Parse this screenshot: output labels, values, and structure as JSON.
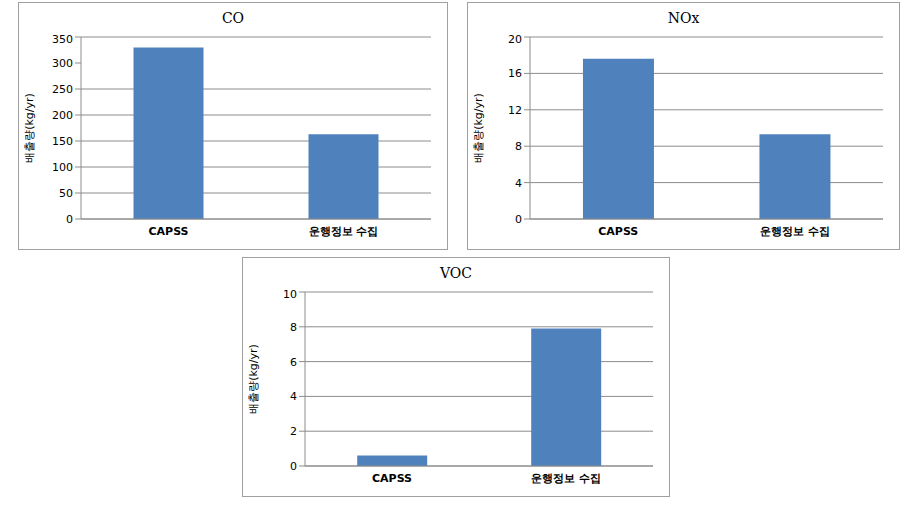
{
  "chart_data": [
    {
      "type": "bar",
      "title": "CO",
      "ylabel": "배출량(kg/yr)",
      "categories": [
        "CAPSS",
        "운행정보 수집"
      ],
      "values": [
        330,
        163
      ],
      "color": "#4f81bd",
      "ylim": [
        0,
        350
      ],
      "yticks": [
        0,
        50,
        100,
        150,
        200,
        250,
        300,
        350
      ],
      "grid": true
    },
    {
      "type": "bar",
      "title": "NOx",
      "ylabel": "배출량(kg/yr)",
      "categories": [
        "CAPSS",
        "운행정보 수집"
      ],
      "values": [
        17.6,
        9.3
      ],
      "color": "#4f81bd",
      "ylim": [
        0,
        20
      ],
      "yticks": [
        0,
        4,
        8,
        12,
        16,
        20
      ],
      "grid": true
    },
    {
      "type": "bar",
      "title": "VOC",
      "ylabel": "배출량(kg/yr)",
      "categories": [
        "CAPSS",
        "운행정보 수집"
      ],
      "values": [
        0.6,
        7.9
      ],
      "color": "#4f81bd",
      "ylim": [
        0,
        10
      ],
      "yticks": [
        0,
        2,
        4,
        6,
        8,
        10
      ],
      "grid": true
    }
  ]
}
